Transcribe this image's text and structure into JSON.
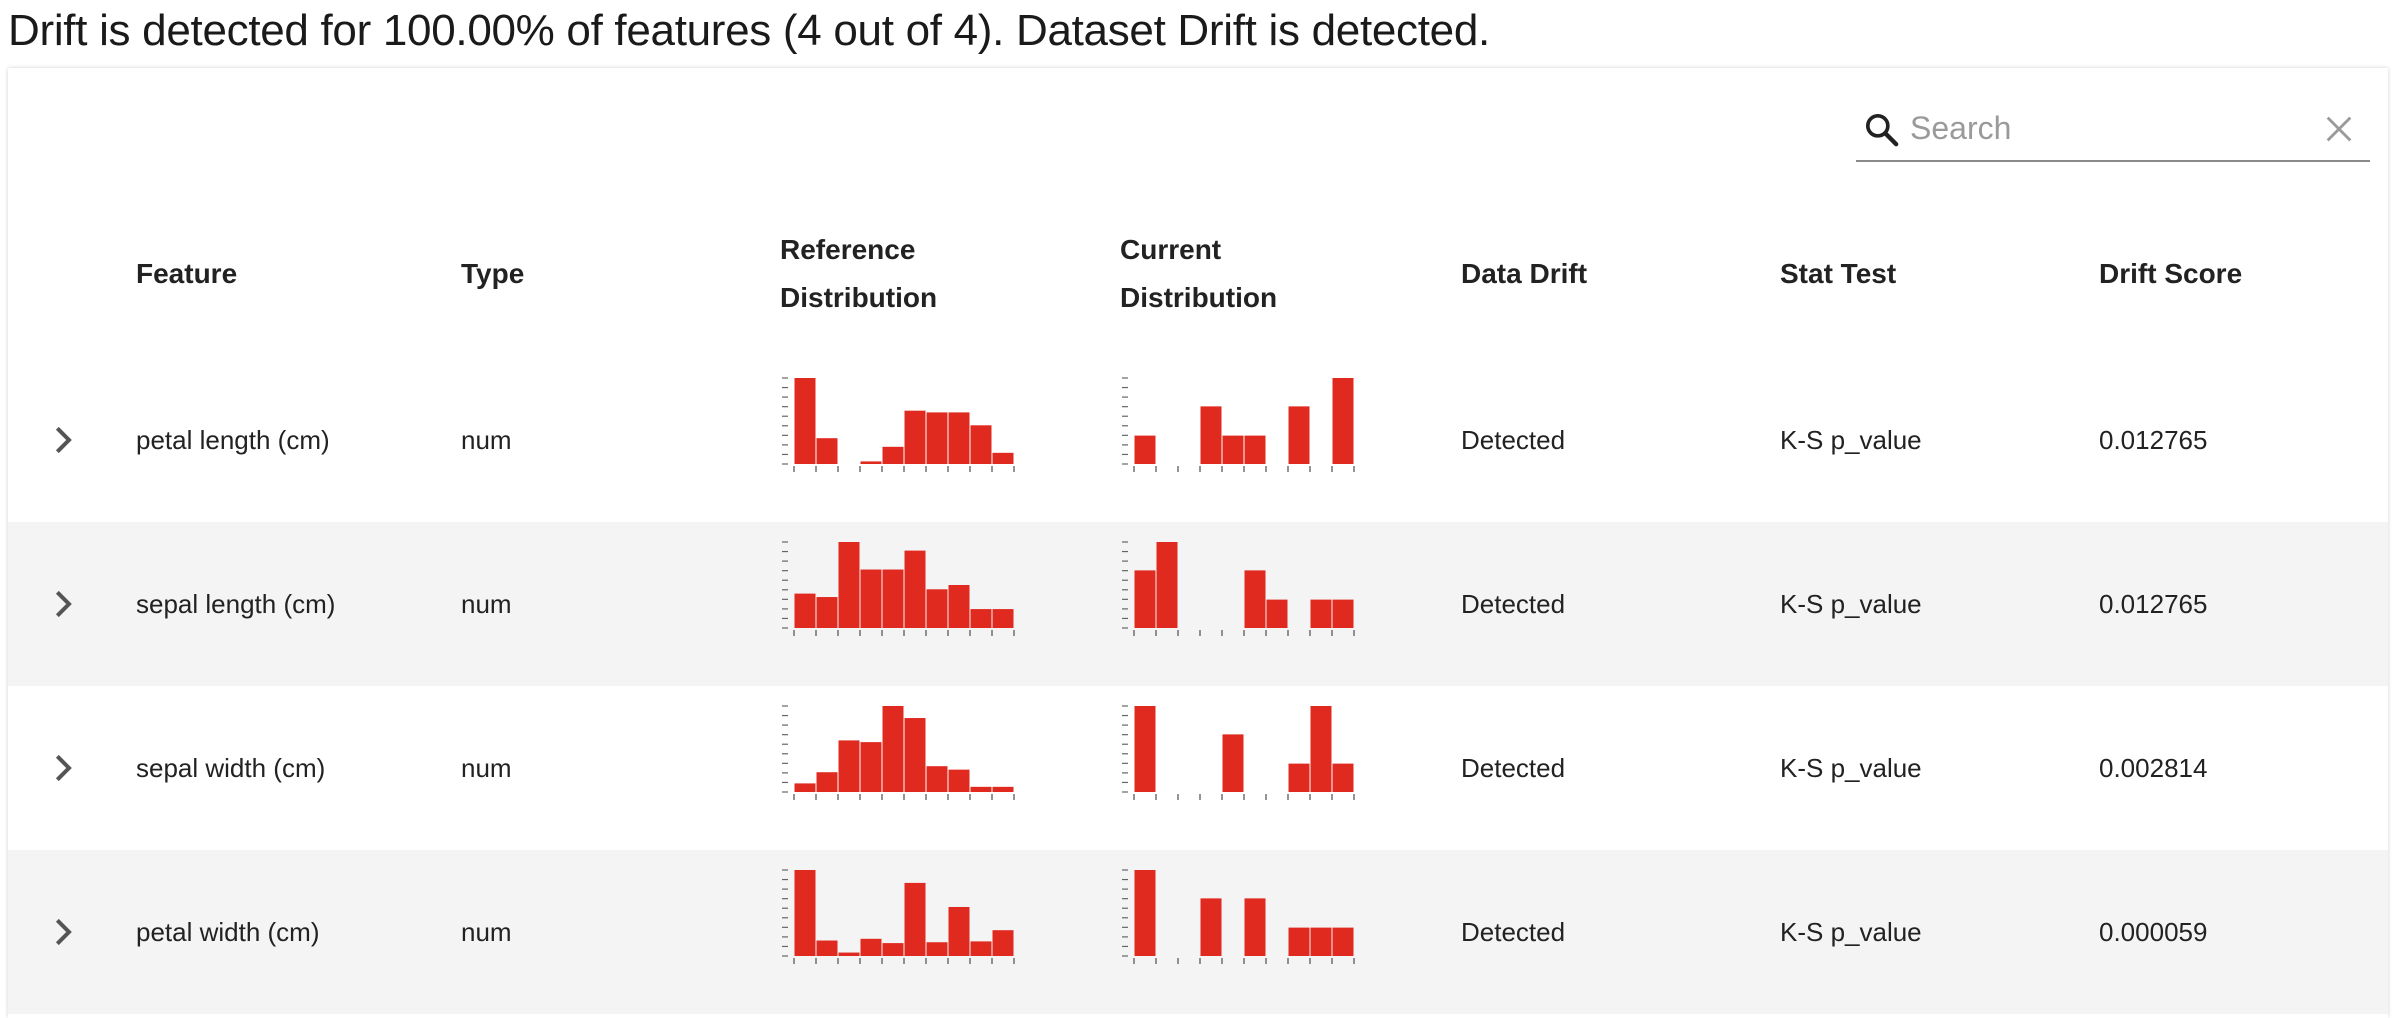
{
  "summary": "Drift is detected for 100.00% of features (4 out of 4). Dataset Drift is detected.",
  "search": {
    "placeholder": "Search",
    "value": ""
  },
  "icons": {
    "search": "search-icon",
    "clear": "close-icon",
    "expand": "chevron-right-icon"
  },
  "colors": {
    "bar": "#e0291f",
    "row_alt": "#f4f4f4",
    "text": "#222222"
  },
  "headers": {
    "feature": "Feature",
    "type": "Type",
    "ref_line1": "Reference",
    "ref_line2": "Distribution",
    "cur_line1": "Current",
    "cur_line2": "Distribution",
    "data_drift": "Data Drift",
    "stat_test": "Stat Test",
    "drift_score": "Drift Score"
  },
  "rows": [
    {
      "feature": "petal length (cm)",
      "type": "num",
      "data_drift": "Detected",
      "stat_test": "K-S p_value",
      "drift_score": "0.012765",
      "ref_hist": [
        1.0,
        0.3,
        0,
        0.03,
        0.2,
        0.62,
        0.6,
        0.6,
        0.45,
        0.13
      ],
      "cur_hist": [
        0.33,
        0,
        0,
        0.67,
        0.33,
        0.33,
        0,
        0.67,
        0,
        1.0
      ]
    },
    {
      "feature": "sepal length (cm)",
      "type": "num",
      "data_drift": "Detected",
      "stat_test": "K-S p_value",
      "drift_score": "0.012765",
      "ref_hist": [
        0.4,
        0.36,
        1.0,
        0.68,
        0.68,
        0.9,
        0.45,
        0.5,
        0.22,
        0.22
      ],
      "cur_hist": [
        0.67,
        1.0,
        0,
        0,
        0,
        0.67,
        0.33,
        0,
        0.33,
        0.33
      ]
    },
    {
      "feature": "sepal width (cm)",
      "type": "num",
      "data_drift": "Detected",
      "stat_test": "K-S p_value",
      "drift_score": "0.002814",
      "ref_hist": [
        0.1,
        0.23,
        0.6,
        0.58,
        1.0,
        0.86,
        0.3,
        0.26,
        0.06,
        0.06
      ],
      "cur_hist": [
        1.0,
        0,
        0,
        0,
        0.67,
        0,
        0,
        0.33,
        1.0,
        0.33
      ]
    },
    {
      "feature": "petal width (cm)",
      "type": "num",
      "data_drift": "Detected",
      "stat_test": "K-S p_value",
      "drift_score": "0.000059",
      "ref_hist": [
        1.0,
        0.18,
        0.04,
        0.2,
        0.15,
        0.85,
        0.16,
        0.57,
        0.17,
        0.3
      ],
      "cur_hist": [
        1.0,
        0,
        0,
        0.67,
        0,
        0.67,
        0,
        0.33,
        0.33,
        0.33
      ]
    }
  ]
}
